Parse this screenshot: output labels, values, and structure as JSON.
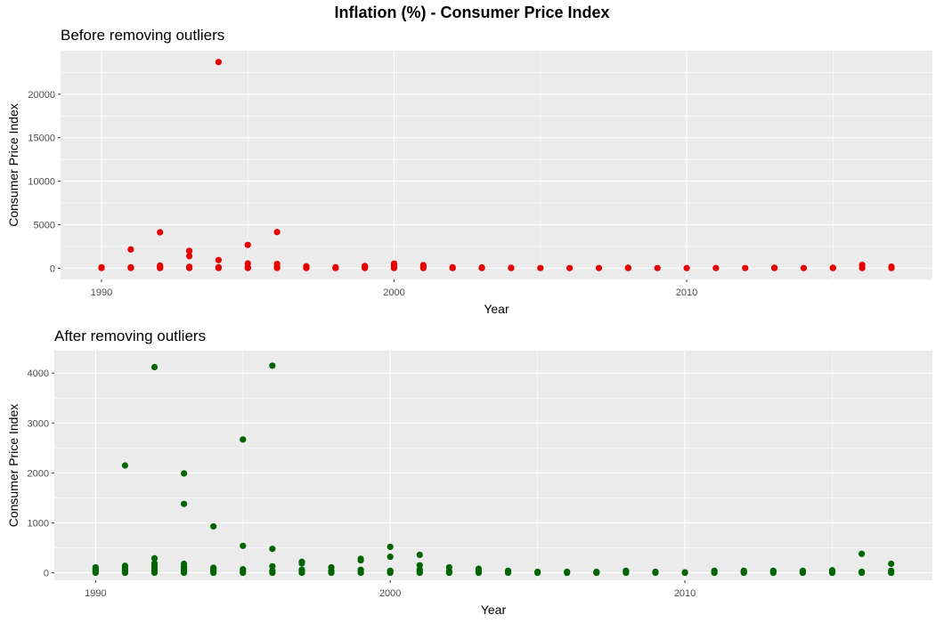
{
  "title": "Inflation (%) - Consumer Price Index",
  "chart_data": [
    {
      "type": "scatter",
      "title": "Before removing outliers",
      "xlabel": "Year",
      "ylabel": "Consumer Price Index",
      "xlim": [
        1988.6,
        2018.4
      ],
      "ylim": [
        -1300,
        25000
      ],
      "xticks": [
        "1990",
        "2000",
        "2010"
      ],
      "yticks": [
        "0",
        "5000",
        "10000",
        "15000",
        "20000"
      ],
      "grid": true,
      "color": "#e60000",
      "points": [
        [
          1990,
          10
        ],
        [
          1990,
          50
        ],
        [
          1990,
          100
        ],
        [
          1991,
          20
        ],
        [
          1991,
          100
        ],
        [
          1991,
          2150
        ],
        [
          1992,
          10
        ],
        [
          1992,
          80
        ],
        [
          1992,
          150
        ],
        [
          1992,
          300
        ],
        [
          1992,
          4120
        ],
        [
          1993,
          20
        ],
        [
          1993,
          150
        ],
        [
          1993,
          1380
        ],
        [
          1993,
          1990
        ],
        [
          1994,
          10
        ],
        [
          1994,
          100
        ],
        [
          1994,
          930
        ],
        [
          1994,
          23700
        ],
        [
          1995,
          20
        ],
        [
          1995,
          100
        ],
        [
          1995,
          540
        ],
        [
          1995,
          2670
        ],
        [
          1996,
          20
        ],
        [
          1996,
          120
        ],
        [
          1996,
          480
        ],
        [
          1996,
          4150
        ],
        [
          1997,
          10
        ],
        [
          1997,
          100
        ],
        [
          1997,
          210
        ],
        [
          1998,
          10
        ],
        [
          1998,
          100
        ],
        [
          1999,
          10
        ],
        [
          1999,
          100
        ],
        [
          1999,
          250
        ],
        [
          2000,
          10
        ],
        [
          2000,
          100
        ],
        [
          2000,
          320
        ],
        [
          2000,
          520
        ],
        [
          2001,
          10
        ],
        [
          2001,
          150
        ],
        [
          2001,
          350
        ],
        [
          2002,
          10
        ],
        [
          2002,
          100
        ],
        [
          2003,
          10
        ],
        [
          2003,
          80
        ],
        [
          2004,
          10
        ],
        [
          2004,
          40
        ],
        [
          2005,
          10
        ],
        [
          2006,
          10
        ],
        [
          2007,
          10
        ],
        [
          2008,
          10
        ],
        [
          2008,
          40
        ],
        [
          2009,
          10
        ],
        [
          2010,
          5
        ],
        [
          2011,
          10
        ],
        [
          2012,
          10
        ],
        [
          2013,
          10
        ],
        [
          2013,
          40
        ],
        [
          2014,
          10
        ],
        [
          2015,
          10
        ],
        [
          2015,
          40
        ],
        [
          2016,
          10
        ],
        [
          2016,
          380
        ],
        [
          2017,
          10
        ],
        [
          2017,
          180
        ]
      ]
    },
    {
      "type": "scatter",
      "title": "After removing outliers",
      "xlabel": "Year",
      "ylabel": "Consumer Price Index",
      "xlim": [
        1988.6,
        2018.4
      ],
      "ylim": [
        -150,
        4450
      ],
      "xticks": [
        "1990",
        "2000",
        "2010"
      ],
      "yticks": [
        "0",
        "1000",
        "2000",
        "3000",
        "4000"
      ],
      "grid": true,
      "color": "#006400",
      "points": [
        [
          1990,
          0
        ],
        [
          1990,
          20
        ],
        [
          1990,
          50
        ],
        [
          1990,
          80
        ],
        [
          1990,
          110
        ],
        [
          1991,
          0
        ],
        [
          1991,
          30
        ],
        [
          1991,
          60
        ],
        [
          1991,
          100
        ],
        [
          1991,
          140
        ],
        [
          1991,
          2150
        ],
        [
          1992,
          0
        ],
        [
          1992,
          30
        ],
        [
          1992,
          60
        ],
        [
          1992,
          100
        ],
        [
          1992,
          150
        ],
        [
          1992,
          190
        ],
        [
          1992,
          290
        ],
        [
          1992,
          4120
        ],
        [
          1993,
          0
        ],
        [
          1993,
          40
        ],
        [
          1993,
          80
        ],
        [
          1993,
          120
        ],
        [
          1993,
          180
        ],
        [
          1993,
          1380
        ],
        [
          1993,
          1990
        ],
        [
          1994,
          0
        ],
        [
          1994,
          30
        ],
        [
          1994,
          60
        ],
        [
          1994,
          100
        ],
        [
          1994,
          930
        ],
        [
          1995,
          0
        ],
        [
          1995,
          30
        ],
        [
          1995,
          70
        ],
        [
          1995,
          540
        ],
        [
          1995,
          2670
        ],
        [
          1996,
          0
        ],
        [
          1996,
          40
        ],
        [
          1996,
          130
        ],
        [
          1996,
          480
        ],
        [
          1996,
          4150
        ],
        [
          1997,
          0
        ],
        [
          1997,
          30
        ],
        [
          1997,
          60
        ],
        [
          1997,
          190
        ],
        [
          1997,
          220
        ],
        [
          1998,
          0
        ],
        [
          1998,
          40
        ],
        [
          1998,
          110
        ],
        [
          1999,
          0
        ],
        [
          1999,
          30
        ],
        [
          1999,
          60
        ],
        [
          1999,
          250
        ],
        [
          1999,
          280
        ],
        [
          2000,
          0
        ],
        [
          2000,
          20
        ],
        [
          2000,
          40
        ],
        [
          2000,
          320
        ],
        [
          2000,
          520
        ],
        [
          2001,
          0
        ],
        [
          2001,
          20
        ],
        [
          2001,
          60
        ],
        [
          2001,
          150
        ],
        [
          2001,
          360
        ],
        [
          2002,
          0
        ],
        [
          2002,
          30
        ],
        [
          2002,
          110
        ],
        [
          2003,
          0
        ],
        [
          2003,
          30
        ],
        [
          2003,
          80
        ],
        [
          2004,
          0
        ],
        [
          2004,
          20
        ],
        [
          2004,
          40
        ],
        [
          2005,
          0
        ],
        [
          2005,
          20
        ],
        [
          2006,
          0
        ],
        [
          2006,
          20
        ],
        [
          2007,
          0
        ],
        [
          2007,
          10
        ],
        [
          2007,
          20
        ],
        [
          2008,
          0
        ],
        [
          2008,
          20
        ],
        [
          2008,
          40
        ],
        [
          2009,
          0
        ],
        [
          2009,
          20
        ],
        [
          2010,
          0
        ],
        [
          2010,
          10
        ],
        [
          2011,
          0
        ],
        [
          2011,
          20
        ],
        [
          2011,
          40
        ],
        [
          2012,
          0
        ],
        [
          2012,
          20
        ],
        [
          2012,
          40
        ],
        [
          2013,
          0
        ],
        [
          2013,
          20
        ],
        [
          2013,
          40
        ],
        [
          2014,
          0
        ],
        [
          2014,
          20
        ],
        [
          2014,
          40
        ],
        [
          2015,
          0
        ],
        [
          2015,
          30
        ],
        [
          2015,
          50
        ],
        [
          2016,
          0
        ],
        [
          2016,
          20
        ],
        [
          2016,
          380
        ],
        [
          2017,
          0
        ],
        [
          2017,
          40
        ],
        [
          2017,
          180
        ]
      ]
    }
  ]
}
